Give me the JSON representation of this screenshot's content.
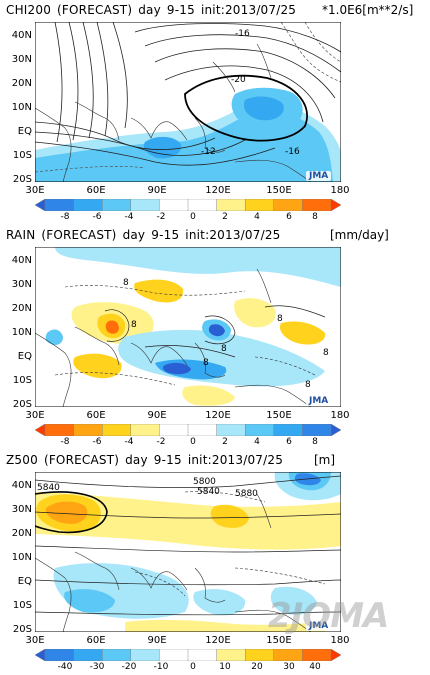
{
  "domain": "Map",
  "lat_labels": [
    "40N",
    "30N",
    "20N",
    "10N",
    "EQ",
    "10S",
    "20S"
  ],
  "lon_labels": [
    "30E",
    "60E",
    "90E",
    "120E",
    "150E",
    "180"
  ],
  "watermark": "2JOMA",
  "logo_text": "JMA",
  "panels": [
    {
      "title_parts": [
        "CHI200",
        "(FORECAST)",
        "day",
        "9-15",
        "init:2013/07/25"
      ],
      "units": "*1.0E6[m**2/s]",
      "colorbar_labels": [
        "-8",
        "-6",
        "-4",
        "-2",
        "0",
        "2",
        "4",
        "6",
        "8"
      ],
      "colorbar_colors": [
        "#2a5fd4",
        "#2f86e8",
        "#34a8f0",
        "#5cc8f5",
        "#a8e6fa",
        "#ffffff",
        "#ffffff",
        "#fff28a",
        "#ffd21e",
        "#ffa514",
        "#ff6e0a",
        "#ff3a00"
      ],
      "contour_labels": [
        "-16",
        "-20",
        "-12",
        "-16"
      ]
    },
    {
      "title_parts": [
        "RAIN",
        "(FORECAST)",
        "day",
        "9-15",
        "init:2013/07/25"
      ],
      "units": "[mm/day]",
      "colorbar_labels": [
        "-8",
        "-6",
        "-4",
        "-2",
        "0",
        "2",
        "4",
        "6",
        "8"
      ],
      "colorbar_colors": [
        "#ff3a00",
        "#ff6e0a",
        "#ffa514",
        "#ffd21e",
        "#fff28a",
        "#ffffff",
        "#ffffff",
        "#a8e6fa",
        "#5cc8f5",
        "#34a8f0",
        "#2f86e8",
        "#2a5fd4"
      ],
      "contour_labels": [
        "8",
        "8",
        "8",
        "8",
        "8",
        "8",
        "8"
      ]
    },
    {
      "title_parts": [
        "Z500",
        "(FORECAST)",
        "day",
        "9-15",
        "init:2013/07/25"
      ],
      "units": "[m]",
      "colorbar_labels": [
        "-40",
        "-30",
        "-20",
        "-10",
        "0",
        "10",
        "20",
        "30",
        "40"
      ],
      "colorbar_colors": [
        "#2a5fd4",
        "#2f86e8",
        "#34a8f0",
        "#5cc8f5",
        "#a8e6fa",
        "#ffffff",
        "#ffffff",
        "#fff28a",
        "#ffd21e",
        "#ffa514",
        "#ff6e0a",
        "#ff3a00"
      ],
      "contour_labels": [
        "5840",
        "5800",
        "5840",
        "5880"
      ]
    }
  ]
}
